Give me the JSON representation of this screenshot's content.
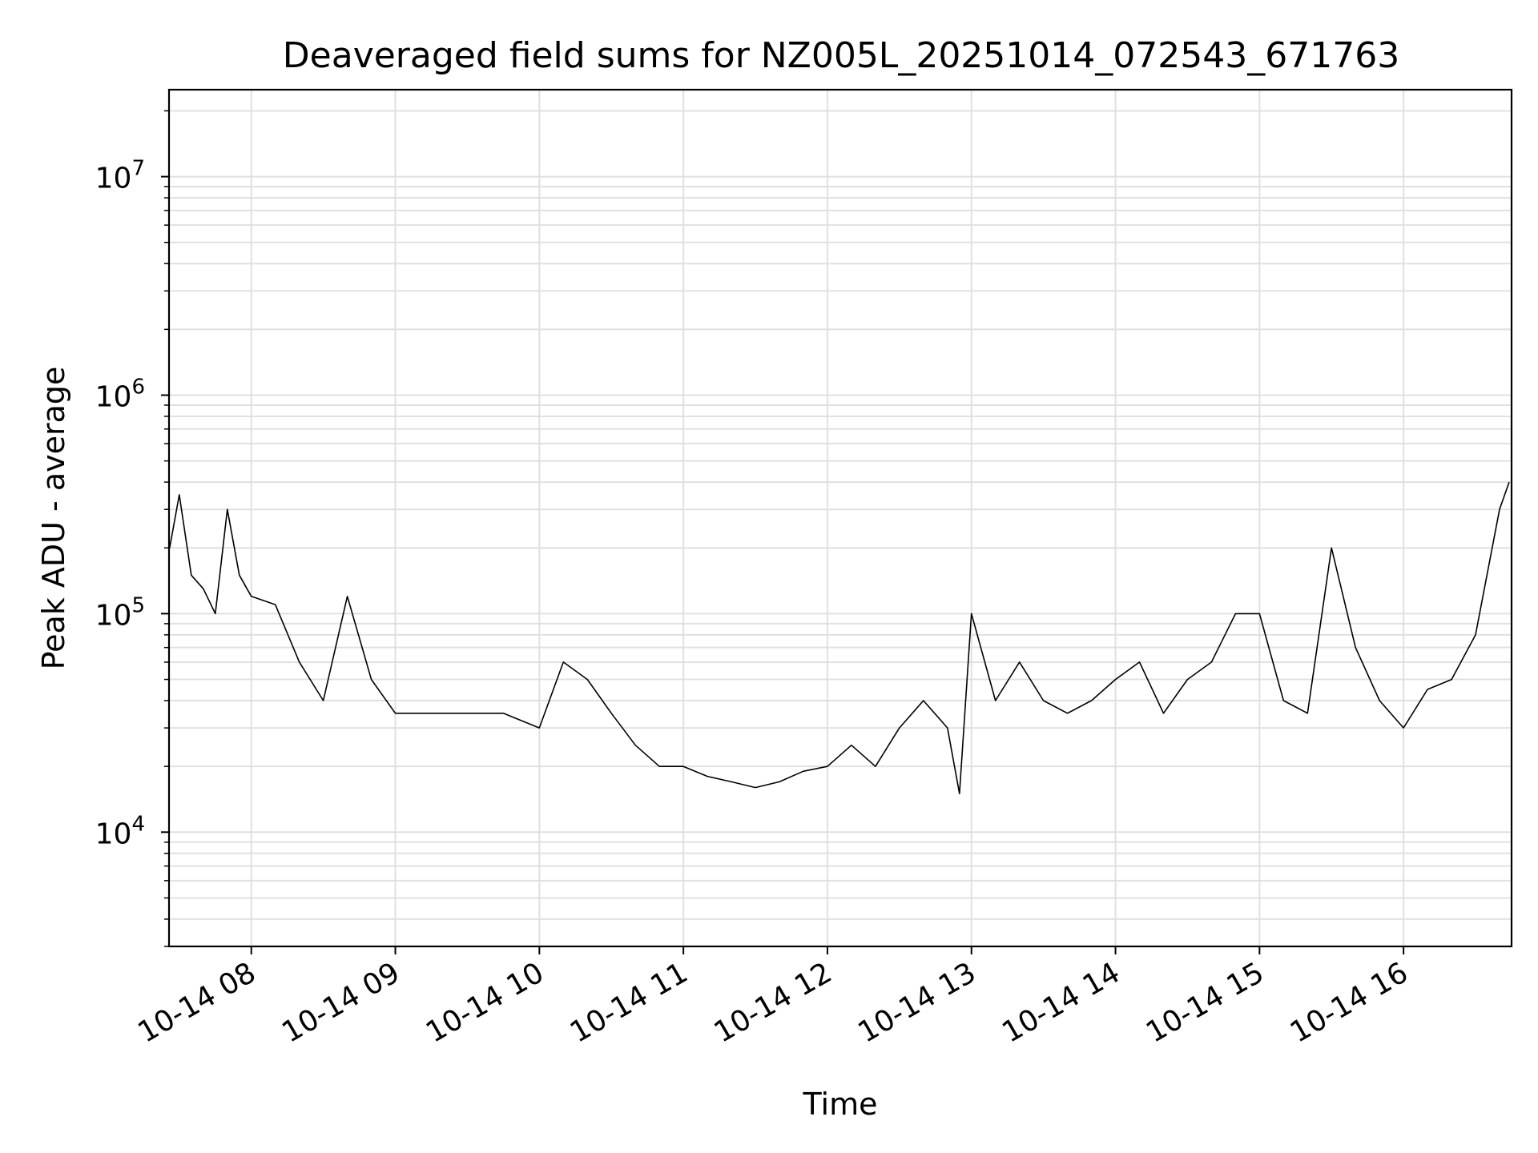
{
  "chart_data": {
    "type": "line",
    "title": "Deaveraged field sums for NZ005L_20251014_072543_671763",
    "xlabel": "Time",
    "ylabel": "Peak ADU - average",
    "yscale": "log",
    "ylim": [
      3000,
      25000000
    ],
    "xlim": [
      "2025-10-14 07:25:43",
      "2025-10-14 16:45:00"
    ],
    "grid": true,
    "line_color": "#000000",
    "grid_color": "#e0e0e0",
    "x_ticks": [
      "2025-10-14 08:00",
      "2025-10-14 09:00",
      "2025-10-14 10:00",
      "2025-10-14 11:00",
      "2025-10-14 12:00",
      "2025-10-14 13:00",
      "2025-10-14 14:00",
      "2025-10-14 15:00",
      "2025-10-14 16:00"
    ],
    "x_tick_labels": [
      "10-14 08",
      "10-14 09",
      "10-14 10",
      "10-14 11",
      "10-14 12",
      "10-14 13",
      "10-14 14",
      "10-14 15",
      "10-14 16"
    ],
    "y_ticks": [
      {
        "value": 10000,
        "base": "10",
        "exp": "4"
      },
      {
        "value": 100000,
        "base": "10",
        "exp": "5"
      },
      {
        "value": 1000000,
        "base": "10",
        "exp": "6"
      },
      {
        "value": 10000000,
        "base": "10",
        "exp": "7"
      }
    ],
    "series": [
      {
        "x": [
          "2025-10-14 07:26",
          "2025-10-14 07:30",
          "2025-10-14 07:35",
          "2025-10-14 07:40",
          "2025-10-14 07:45",
          "2025-10-14 07:50",
          "2025-10-14 07:55",
          "2025-10-14 08:00",
          "2025-10-14 08:10",
          "2025-10-14 08:20",
          "2025-10-14 08:30",
          "2025-10-14 08:40",
          "2025-10-14 08:50",
          "2025-10-14 09:00",
          "2025-10-14 09:15",
          "2025-10-14 09:30",
          "2025-10-14 09:45",
          "2025-10-14 10:00",
          "2025-10-14 10:10",
          "2025-10-14 10:20",
          "2025-10-14 10:30",
          "2025-10-14 10:40",
          "2025-10-14 10:50",
          "2025-10-14 11:00",
          "2025-10-14 11:10",
          "2025-10-14 11:20",
          "2025-10-14 11:30",
          "2025-10-14 11:40",
          "2025-10-14 11:50",
          "2025-10-14 12:00",
          "2025-10-14 12:10",
          "2025-10-14 12:20",
          "2025-10-14 12:30",
          "2025-10-14 12:40",
          "2025-10-14 12:50",
          "2025-10-14 12:55",
          "2025-10-14 13:00",
          "2025-10-14 13:10",
          "2025-10-14 13:20",
          "2025-10-14 13:30",
          "2025-10-14 13:40",
          "2025-10-14 13:50",
          "2025-10-14 14:00",
          "2025-10-14 14:10",
          "2025-10-14 14:20",
          "2025-10-14 14:30",
          "2025-10-14 14:40",
          "2025-10-14 14:50",
          "2025-10-14 15:00",
          "2025-10-14 15:10",
          "2025-10-14 15:20",
          "2025-10-14 15:30",
          "2025-10-14 15:40",
          "2025-10-14 15:50",
          "2025-10-14 16:00",
          "2025-10-14 16:10",
          "2025-10-14 16:20",
          "2025-10-14 16:30",
          "2025-10-14 16:40",
          "2025-10-14 16:44"
        ],
        "y": [
          200000,
          350000,
          150000,
          130000,
          100000,
          300000,
          150000,
          120000,
          110000,
          60000,
          40000,
          120000,
          50000,
          35000,
          35000,
          35000,
          35000,
          30000,
          60000,
          50000,
          35000,
          25000,
          20000,
          20000,
          18000,
          17000,
          16000,
          17000,
          19000,
          20000,
          25000,
          20000,
          30000,
          40000,
          30000,
          15000,
          100000,
          40000,
          60000,
          40000,
          35000,
          40000,
          50000,
          60000,
          35000,
          50000,
          60000,
          100000,
          100000,
          40000,
          35000,
          200000,
          70000,
          40000,
          30000,
          45000,
          50000,
          80000,
          300000,
          400000
        ]
      }
    ]
  }
}
